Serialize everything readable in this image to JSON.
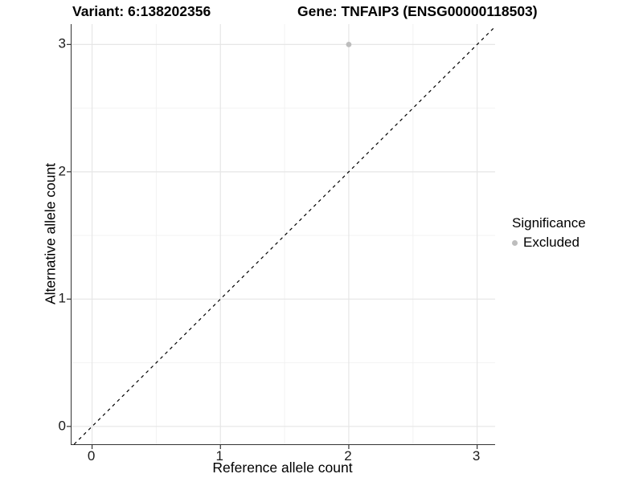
{
  "chart_data": {
    "type": "scatter",
    "title_left": "Variant: 6:138202356",
    "title_right": "Gene: TNFAIP3 (ENSG00000118503)",
    "xlabel": "Reference allele count",
    "ylabel": "Alternative allele count",
    "xlim": [
      -0.16,
      3.14
    ],
    "ylim": [
      -0.14,
      3.16
    ],
    "x_ticks": [
      0,
      1,
      2,
      3
    ],
    "y_ticks": [
      0,
      1,
      2,
      3
    ],
    "grid": {
      "major": true,
      "minor": true,
      "major_color": "#e6e6e6",
      "minor_color": "#f2f2f2"
    },
    "reference_line": {
      "type": "identity",
      "style": "dashed",
      "color": "#000000"
    },
    "series": [
      {
        "name": "Excluded",
        "color": "#bdbdbd",
        "points": [
          [
            2,
            3
          ]
        ]
      }
    ],
    "legend": {
      "title": "Significance",
      "position": "right",
      "items": [
        {
          "label": "Excluded",
          "color": "#bdbdbd",
          "marker": "circle"
        }
      ]
    },
    "colors": {
      "axis_line": "#333333",
      "tick_text": "#1a1a1a"
    }
  }
}
